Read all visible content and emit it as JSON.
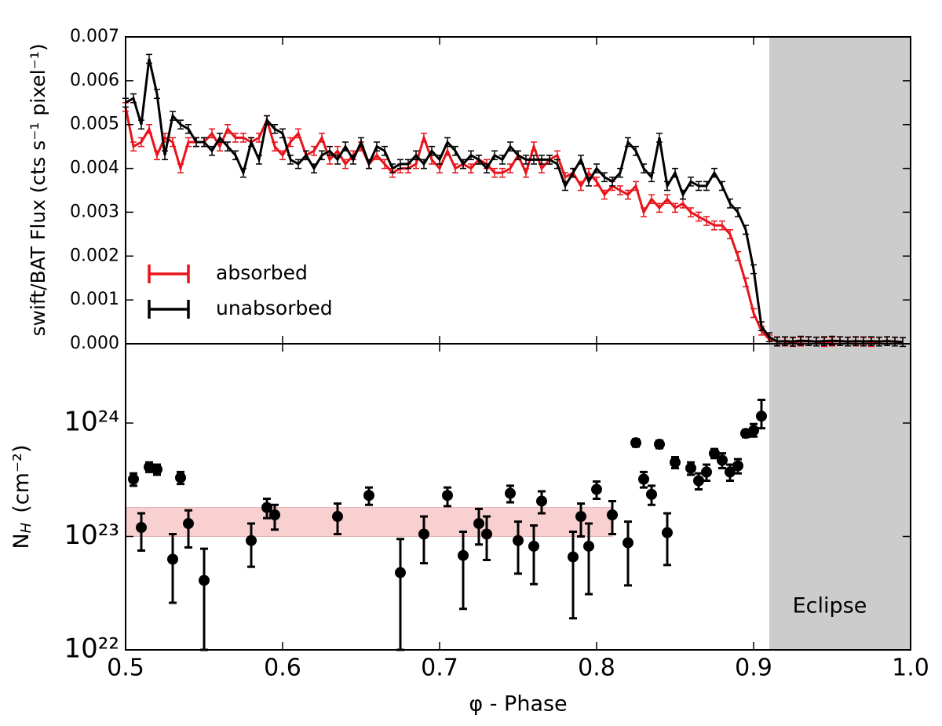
{
  "chart_data": [
    {
      "type": "line",
      "ylabel": "swift/BAT Flux (cts s⁻¹  pixel⁻¹)",
      "xlim": [
        0.5,
        1.0
      ],
      "ylim": [
        0,
        0.007
      ],
      "yticks": [
        {
          "value": 0,
          "label": "0.000"
        },
        {
          "value": 0.001,
          "label": "0.001"
        },
        {
          "value": 0.002,
          "label": "0.002"
        },
        {
          "value": 0.003,
          "label": "0.003"
        },
        {
          "value": 0.004,
          "label": "0.004"
        },
        {
          "value": 0.005,
          "label": "0.005"
        },
        {
          "value": 0.006,
          "label": "0.006"
        },
        {
          "value": 0.007,
          "label": "0.007"
        }
      ],
      "legend": "lower left",
      "x": [
        0.5,
        0.505,
        0.51,
        0.515,
        0.52,
        0.525,
        0.53,
        0.535,
        0.54,
        0.545,
        0.55,
        0.555,
        0.56,
        0.565,
        0.57,
        0.575,
        0.58,
        0.585,
        0.59,
        0.595,
        0.6,
        0.605,
        0.61,
        0.615,
        0.62,
        0.625,
        0.63,
        0.635,
        0.64,
        0.645,
        0.65,
        0.655,
        0.66,
        0.665,
        0.67,
        0.675,
        0.68,
        0.685,
        0.69,
        0.695,
        0.7,
        0.705,
        0.71,
        0.715,
        0.72,
        0.725,
        0.73,
        0.735,
        0.74,
        0.745,
        0.75,
        0.755,
        0.76,
        0.765,
        0.77,
        0.775,
        0.78,
        0.785,
        0.79,
        0.795,
        0.8,
        0.805,
        0.81,
        0.815,
        0.82,
        0.825,
        0.83,
        0.835,
        0.84,
        0.845,
        0.85,
        0.855,
        0.86,
        0.865,
        0.87,
        0.875,
        0.88,
        0.885,
        0.89,
        0.895,
        0.9,
        0.905,
        0.91,
        0.915,
        0.92,
        0.925,
        0.93,
        0.935,
        0.94,
        0.945,
        0.95,
        0.955,
        0.96,
        0.965,
        0.97,
        0.975,
        0.98,
        0.985,
        0.99,
        0.995
      ],
      "series": [
        {
          "name": "absorbed",
          "color": "#e8141b",
          "error": 0.0001,
          "values": [
            0.0054,
            0.0045,
            0.0046,
            0.0049,
            0.0043,
            0.0047,
            0.0046,
            0.004,
            0.0046,
            0.0046,
            0.0046,
            0.0048,
            0.0045,
            0.0049,
            0.0047,
            0.0047,
            0.0046,
            0.0047,
            0.0051,
            0.0045,
            0.0043,
            0.0046,
            0.0048,
            0.0043,
            0.0044,
            0.0047,
            0.0042,
            0.0044,
            0.0041,
            0.0043,
            0.0045,
            0.0041,
            0.0043,
            0.0041,
            0.0039,
            0.004,
            0.004,
            0.0041,
            0.0047,
            0.0042,
            0.004,
            0.0044,
            0.004,
            0.0041,
            0.004,
            0.0042,
            0.0041,
            0.0039,
            0.0039,
            0.004,
            0.0043,
            0.0039,
            0.0045,
            0.004,
            0.0042,
            0.0043,
            0.0038,
            0.0039,
            0.0036,
            0.0039,
            0.0037,
            0.0034,
            0.0036,
            0.0035,
            0.0034,
            0.0036,
            0.003,
            0.0033,
            0.0031,
            0.0033,
            0.0031,
            0.0032,
            0.003,
            0.0029,
            0.0028,
            0.0027,
            0.0027,
            0.0025,
            0.002,
            0.0014,
            0.0007,
            0.0003,
            0.0001,
            6e-05,
            5e-05,
            4e-05,
            5e-05,
            6e-05,
            5e-05,
            4e-05,
            5e-05,
            6e-05,
            5e-05,
            5e-05,
            6e-05,
            4e-05,
            5e-05,
            6e-05,
            5e-05,
            4e-05
          ]
        },
        {
          "name": "unabsorbed",
          "color": "#000000",
          "error": 0.0001,
          "values": [
            0.0055,
            0.0056,
            0.005,
            0.0065,
            0.0057,
            0.0043,
            0.0052,
            0.005,
            0.0049,
            0.0046,
            0.0046,
            0.0044,
            0.0047,
            0.0045,
            0.0043,
            0.0039,
            0.0046,
            0.0042,
            0.0051,
            0.0049,
            0.0048,
            0.0042,
            0.0041,
            0.0043,
            0.004,
            0.0043,
            0.0044,
            0.0042,
            0.0045,
            0.0042,
            0.0046,
            0.0041,
            0.0045,
            0.0044,
            0.004,
            0.0041,
            0.0041,
            0.0043,
            0.0041,
            0.0044,
            0.0042,
            0.0046,
            0.0044,
            0.0041,
            0.0043,
            0.0042,
            0.004,
            0.0043,
            0.0042,
            0.0045,
            0.0043,
            0.0042,
            0.0042,
            0.0042,
            0.0042,
            0.0041,
            0.0036,
            0.0039,
            0.0042,
            0.0037,
            0.004,
            0.0038,
            0.0037,
            0.0039,
            0.0046,
            0.0044,
            0.004,
            0.0038,
            0.0047,
            0.0036,
            0.0039,
            0.0034,
            0.0037,
            0.0036,
            0.0036,
            0.0039,
            0.0036,
            0.0032,
            0.003,
            0.0026,
            0.0017,
            0.0004,
            0.00015,
            5e-05,
            6e-05,
            5e-05,
            7e-05,
            6e-05,
            5e-05,
            6e-05,
            7e-05,
            6e-05,
            5e-05,
            6e-05,
            5e-05,
            6e-05,
            5e-05,
            6e-05,
            5e-05,
            4e-05
          ]
        }
      ]
    },
    {
      "type": "scatter",
      "ylabel": {
        "main": "N",
        "sub": "H",
        "unit": "(cm⁻²)"
      },
      "xlabel": "φ - Phase",
      "xlim": [
        0.5,
        1.0
      ],
      "xticks": [
        0.5,
        0.6,
        0.7,
        0.8,
        0.9,
        {
          "value": 1,
          "label": "1.0"
        }
      ],
      "ylim": [
        1e+22,
        5e+24
      ],
      "yscale": "log",
      "yticks": [
        {
          "value": 1e+22,
          "label": "10²²"
        },
        {
          "value": 1e+23,
          "label": "10²³"
        },
        {
          "value": 1e+24,
          "label": "10²⁴"
        }
      ],
      "color": "#000000",
      "eclipse": {
        "label": "Eclipse",
        "xlim": [
          0.91,
          1.0
        ],
        "color": "#cccccc"
      },
      "band": {
        "xlim": [
          0.5,
          0.81
        ],
        "ylim": [
          1e+23,
          1.8e+23
        ],
        "color": "#f8d0d0"
      },
      "x": [
        0.505,
        0.51,
        0.515,
        0.52,
        0.53,
        0.535,
        0.54,
        0.55,
        0.58,
        0.59,
        0.595,
        0.635,
        0.655,
        0.675,
        0.69,
        0.705,
        0.715,
        0.725,
        0.73,
        0.745,
        0.75,
        0.76,
        0.765,
        0.785,
        0.79,
        0.795,
        0.8,
        0.81,
        0.82,
        0.825,
        0.83,
        0.835,
        0.84,
        0.845,
        0.85,
        0.86,
        0.865,
        0.87,
        0.875,
        0.88,
        0.885,
        0.89,
        0.895,
        0.9,
        0.905
      ],
      "values": [
        3.2e+23,
        1.2e+23,
        4.1e+23,
        3.9e+23,
        6.3e+22,
        3.3e+23,
        1.3e+23,
        4.1e+22,
        9.2e+22,
        1.8e+23,
        1.55e+23,
        1.5e+23,
        2.3e+23,
        4.8e+22,
        1.05e+23,
        2.3e+23,
        6.8e+22,
        1.3e+23,
        1.05e+23,
        2.4e+23,
        9.2e+22,
        8.2e+22,
        2.05e+23,
        6.6e+22,
        1.5e+23,
        8.2e+22,
        2.6e+23,
        1.55e+23,
        8.8e+22,
        6.7e+23,
        3.2e+23,
        2.35e+23,
        6.5e+23,
        1.08e+23,
        4.5e+23,
        4e+23,
        3.1e+23,
        3.7e+23,
        5.4e+23,
        4.7e+23,
        3.7e+23,
        4.2e+23,
        8.1e+23,
        8.6e+23,
        1.15e+24
      ],
      "lower": [
        2.8e+23,
        7.5e+22,
        3.7e+23,
        3.5e+23,
        2.6e+22,
        2.9e+23,
        8e+22,
        1e+22,
        5.4e+22,
        1.45e+23,
        1.15e+23,
        1.05e+23,
        1.9e+23,
        1e+22,
        5.8e+22,
        1.85e+23,
        2.3e+22,
        8.5e+22,
        6.2e+22,
        2e+23,
        4.7e+22,
        3.8e+22,
        1.6e+23,
        1.9e+22,
        1e+23,
        3.1e+22,
        2.15e+23,
        1.05e+23,
        3.7e+22,
        6.2e+23,
        2.7e+23,
        1.9e+23,
        6e+23,
        5.6e+22,
        4e+23,
        3.5e+23,
        2.6e+23,
        3.1e+23,
        4.9e+23,
        4e+23,
        3.1e+23,
        3.6e+23,
        7.5e+23,
        7.6e+23,
        9e+23
      ],
      "upper": [
        3.6e+23,
        1.6e+23,
        4.5e+23,
        4.3e+23,
        1.05e+23,
        3.7e+23,
        1.7e+23,
        7.8e+22,
        1.3e+23,
        2.15e+23,
        1.9e+23,
        1.95e+23,
        2.7e+23,
        9.5e+22,
        1.5e+23,
        2.7e+23,
        1.1e+23,
        1.75e+23,
        1.5e+23,
        2.8e+23,
        1.35e+23,
        1.25e+23,
        2.5e+23,
        1.1e+23,
        1.95e+23,
        1.3e+23,
        3.05e+23,
        2.05e+23,
        1.35e+23,
        7.2e+23,
        3.7e+23,
        2.8e+23,
        7e+23,
        1.6e+23,
        5e+23,
        4.5e+23,
        3.6e+23,
        4.3e+23,
        5.9e+23,
        5.4e+23,
        4.3e+23,
        4.8e+23,
        8.7e+23,
        9.8e+23,
        1.6e+24
      ]
    }
  ]
}
